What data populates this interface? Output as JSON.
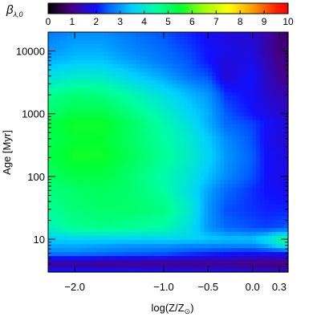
{
  "chart_data": {
    "type": "heatmap",
    "colorbar": {
      "symbol": "β",
      "subscript": "λ,0",
      "min": 0,
      "max": 10,
      "ticks": [
        "0",
        "1",
        "2",
        "3",
        "4",
        "5",
        "6",
        "7",
        "8",
        "9",
        "10"
      ],
      "colormap": "rainbow (black-purple-blue-cyan-green-yellow-orange-red)",
      "position": "top"
    },
    "xaxis": {
      "label": "log(Z/Z",
      "label_symbol": "⊙",
      "label_suffix": ")",
      "range": [
        -2.3,
        0.4
      ],
      "ticks": [
        {
          "value": -2.0,
          "label": "−2.0"
        },
        {
          "value": -1.0,
          "label": "−1.0"
        },
        {
          "value": -0.5,
          "label": "−0.5"
        },
        {
          "value": 0.0,
          "label": "0.0"
        },
        {
          "value": 0.3,
          "label": "0.3"
        }
      ]
    },
    "yaxis": {
      "label": "Age",
      "unit": "[Myr]",
      "scale": "log",
      "range": [
        3,
        20000
      ],
      "ticks": [
        {
          "value": 10,
          "label": "10"
        },
        {
          "value": 100,
          "label": "100"
        },
        {
          "value": 1000,
          "label": "1000"
        },
        {
          "value": 10000,
          "label": "10000"
        }
      ]
    },
    "x": [
      -2.3,
      -2.0,
      -1.7,
      -1.4,
      -1.0,
      -0.7,
      -0.5,
      -0.3,
      0.0,
      0.15,
      0.3,
      0.4
    ],
    "y": [
      3,
      4,
      6,
      8,
      10,
      15,
      30,
      60,
      100,
      200,
      400,
      700,
      1000,
      2000,
      4000,
      7000,
      10000,
      20000
    ],
    "z": [
      [
        2.2,
        2.2,
        2.2,
        2.2,
        2.1,
        2.0,
        2.0,
        2.0,
        1.9,
        1.8,
        1.7,
        1.6
      ],
      [
        1.0,
        1.0,
        0.9,
        0.9,
        0.9,
        0.9,
        0.9,
        0.9,
        0.8,
        0.8,
        0.8,
        0.8
      ],
      [
        2.8,
        2.8,
        2.7,
        2.6,
        2.5,
        2.3,
        2.2,
        2.1,
        2.0,
        2.0,
        2.0,
        2.0
      ],
      [
        3.2,
        3.2,
        3.1,
        3.0,
        3.0,
        2.9,
        2.9,
        2.9,
        2.9,
        3.2,
        3.8,
        4.2
      ],
      [
        3.5,
        3.6,
        3.6,
        3.6,
        3.6,
        3.6,
        3.5,
        3.4,
        3.4,
        3.8,
        4.5,
        4.5
      ],
      [
        4.2,
        4.6,
        4.7,
        4.6,
        4.4,
        3.8,
        3.0,
        2.6,
        2.4,
        2.3,
        2.4,
        2.5
      ],
      [
        4.6,
        4.9,
        5.0,
        5.0,
        4.8,
        4.0,
        3.0,
        2.4,
        2.2,
        2.1,
        2.1,
        2.1
      ],
      [
        4.8,
        5.0,
        5.1,
        5.0,
        4.5,
        3.8,
        3.1,
        2.6,
        2.2,
        2.0,
        1.9,
        1.9
      ],
      [
        5.0,
        5.3,
        5.3,
        5.0,
        4.4,
        3.9,
        3.4,
        2.9,
        2.4,
        2.0,
        1.8,
        1.8
      ],
      [
        5.3,
        5.6,
        5.6,
        5.2,
        4.6,
        4.1,
        3.6,
        3.0,
        2.5,
        2.0,
        1.8,
        1.7
      ],
      [
        5.2,
        5.5,
        5.5,
        5.1,
        4.5,
        4.0,
        3.5,
        2.9,
        2.4,
        1.9,
        1.7,
        1.6
      ],
      [
        5.3,
        5.6,
        5.6,
        5.1,
        4.4,
        3.8,
        3.2,
        2.6,
        2.3,
        2.0,
        1.8,
        1.7
      ],
      [
        5.0,
        5.3,
        5.3,
        4.9,
        4.2,
        3.6,
        3.2,
        2.5,
        2.0,
        1.8,
        1.6,
        1.5
      ],
      [
        4.6,
        4.9,
        4.8,
        4.4,
        3.8,
        3.3,
        3.0,
        2.2,
        1.9,
        1.6,
        1.4,
        1.3
      ],
      [
        3.8,
        4.0,
        4.0,
        3.6,
        3.1,
        2.6,
        2.4,
        1.6,
        2.0,
        1.5,
        1.1,
        1.0
      ],
      [
        3.2,
        3.4,
        3.4,
        3.1,
        2.7,
        2.4,
        2.0,
        1.7,
        1.8,
        1.4,
        1.0,
        0.9
      ],
      [
        3.0,
        3.2,
        3.2,
        2.9,
        2.6,
        2.3,
        2.0,
        1.8,
        1.7,
        1.3,
        0.9,
        0.9
      ],
      [
        2.7,
        2.9,
        2.9,
        2.7,
        2.4,
        2.1,
        1.9,
        1.7,
        1.6,
        1.3,
        0.9,
        0.8
      ]
    ]
  }
}
